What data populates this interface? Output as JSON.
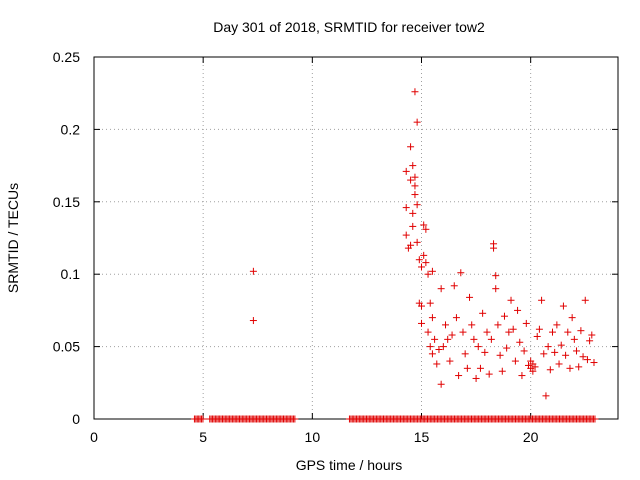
{
  "chart_data": {
    "type": "scatter",
    "title": "Day 301 of 2018, SRMTID for receiver tow2",
    "xlabel": "GPS time / hours",
    "ylabel": "SRMTID / TECUs",
    "xlim": [
      0,
      24
    ],
    "ylim": [
      0,
      0.25
    ],
    "x_ticks": [
      0,
      5,
      10,
      15,
      20
    ],
    "x_tick_labels": [
      "0",
      "5",
      "10",
      "15",
      "20"
    ],
    "y_ticks": [
      0,
      0.05,
      0.1,
      0.15,
      0.2,
      0.25
    ],
    "y_tick_labels": [
      "0",
      "0.05",
      "0.1",
      "0.15",
      "0.2",
      "0.25"
    ],
    "grid": true,
    "marker": "+",
    "series": [
      {
        "name": "SRMTID",
        "color": "#e00000",
        "points": [
          [
            7.3,
            0.102
          ],
          [
            7.3,
            0.068
          ],
          [
            14.3,
            0.171
          ],
          [
            14.3,
            0.146
          ],
          [
            14.3,
            0.127
          ],
          [
            14.4,
            0.118
          ],
          [
            14.5,
            0.188
          ],
          [
            14.5,
            0.165
          ],
          [
            14.5,
            0.12
          ],
          [
            14.6,
            0.175
          ],
          [
            14.6,
            0.142
          ],
          [
            14.6,
            0.133
          ],
          [
            14.7,
            0.226
          ],
          [
            14.7,
            0.167
          ],
          [
            14.7,
            0.161
          ],
          [
            14.7,
            0.155
          ],
          [
            14.8,
            0.205
          ],
          [
            14.8,
            0.148
          ],
          [
            14.8,
            0.122
          ],
          [
            14.9,
            0.11
          ],
          [
            14.9,
            0.08
          ],
          [
            15.0,
            0.105
          ],
          [
            15.0,
            0.078
          ],
          [
            15.0,
            0.066
          ],
          [
            15.1,
            0.113
          ],
          [
            15.1,
            0.134
          ],
          [
            15.2,
            0.131
          ],
          [
            15.2,
            0.108
          ],
          [
            15.3,
            0.1
          ],
          [
            15.3,
            0.06
          ],
          [
            15.4,
            0.08
          ],
          [
            15.4,
            0.05
          ],
          [
            15.5,
            0.102
          ],
          [
            15.5,
            0.07
          ],
          [
            15.5,
            0.045
          ],
          [
            15.6,
            0.055
          ],
          [
            15.7,
            0.038
          ],
          [
            15.8,
            0.048
          ],
          [
            15.9,
            0.09
          ],
          [
            15.9,
            0.024
          ],
          [
            16.0,
            0.05
          ],
          [
            16.1,
            0.065
          ],
          [
            16.2,
            0.055
          ],
          [
            16.3,
            0.04
          ],
          [
            16.4,
            0.058
          ],
          [
            16.5,
            0.092
          ],
          [
            16.6,
            0.07
          ],
          [
            16.7,
            0.03
          ],
          [
            16.8,
            0.101
          ],
          [
            16.9,
            0.06
          ],
          [
            17.0,
            0.045
          ],
          [
            17.1,
            0.035
          ],
          [
            17.2,
            0.084
          ],
          [
            17.3,
            0.065
          ],
          [
            17.4,
            0.055
          ],
          [
            17.5,
            0.028
          ],
          [
            17.6,
            0.05
          ],
          [
            17.7,
            0.035
          ],
          [
            17.8,
            0.073
          ],
          [
            17.9,
            0.046
          ],
          [
            18.0,
            0.06
          ],
          [
            18.1,
            0.031
          ],
          [
            18.2,
            0.055
          ],
          [
            18.3,
            0.121
          ],
          [
            18.3,
            0.118
          ],
          [
            18.4,
            0.099
          ],
          [
            18.4,
            0.09
          ],
          [
            18.5,
            0.065
          ],
          [
            18.6,
            0.044
          ],
          [
            18.7,
            0.033
          ],
          [
            18.8,
            0.071
          ],
          [
            18.9,
            0.049
          ],
          [
            19.0,
            0.06
          ],
          [
            19.1,
            0.082
          ],
          [
            19.2,
            0.062
          ],
          [
            19.3,
            0.04
          ],
          [
            19.4,
            0.075
          ],
          [
            19.5,
            0.053
          ],
          [
            19.6,
            0.03
          ],
          [
            19.7,
            0.047
          ],
          [
            19.8,
            0.066
          ],
          [
            19.9,
            0.037
          ],
          [
            20.0,
            0.035
          ],
          [
            20.0,
            0.04
          ],
          [
            20.1,
            0.033
          ],
          [
            20.1,
            0.038
          ],
          [
            20.2,
            0.036
          ],
          [
            20.3,
            0.057
          ],
          [
            20.4,
            0.062
          ],
          [
            20.5,
            0.082
          ],
          [
            20.6,
            0.045
          ],
          [
            20.7,
            0.016
          ],
          [
            20.8,
            0.05
          ],
          [
            20.9,
            0.034
          ],
          [
            21.0,
            0.06
          ],
          [
            21.1,
            0.046
          ],
          [
            21.2,
            0.065
          ],
          [
            21.3,
            0.038
          ],
          [
            21.4,
            0.051
          ],
          [
            21.5,
            0.078
          ],
          [
            21.6,
            0.044
          ],
          [
            21.7,
            0.06
          ],
          [
            21.8,
            0.035
          ],
          [
            21.9,
            0.07
          ],
          [
            22.0,
            0.055
          ],
          [
            22.1,
            0.047
          ],
          [
            22.2,
            0.036
          ],
          [
            22.3,
            0.061
          ],
          [
            22.4,
            0.043
          ],
          [
            22.5,
            0.082
          ],
          [
            22.6,
            0.041
          ],
          [
            22.7,
            0.054
          ],
          [
            22.8,
            0.058
          ],
          [
            22.9,
            0.039
          ]
        ]
      }
    ],
    "zero_band": [
      [
        4.6,
        5.0
      ],
      [
        5.3,
        9.2
      ],
      [
        11.7,
        23.0
      ]
    ]
  }
}
